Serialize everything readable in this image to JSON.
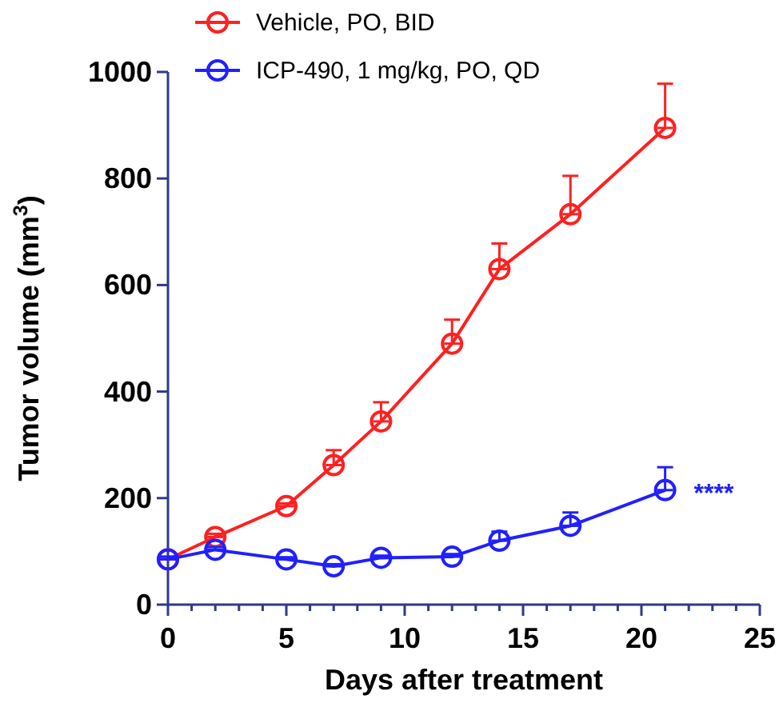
{
  "chart_data": {
    "type": "line",
    "xlabel": "Days after treatment",
    "ylabel": "Tumor volume (mm$^{3}$)",
    "xlim": [
      0,
      25
    ],
    "ylim": [
      0,
      1000
    ],
    "xticks": [
      0,
      {
        "value": 1,
        "label": null
      },
      {
        "value": 2,
        "label": null
      },
      {
        "value": 3,
        "label": null
      },
      {
        "value": 4,
        "label": null
      },
      5,
      {
        "value": 6,
        "label": null
      },
      {
        "value": 7,
        "label": null
      },
      {
        "value": 8,
        "label": null
      },
      {
        "value": 9,
        "label": null
      },
      10,
      {
        "value": 11,
        "label": null
      },
      {
        "value": 12,
        "label": null
      },
      {
        "value": 13,
        "label": null
      },
      {
        "value": 14,
        "label": null
      },
      15,
      {
        "value": 16,
        "label": null
      },
      {
        "value": 17,
        "label": null
      },
      {
        "value": 18,
        "label": null
      },
      {
        "value": 19,
        "label": null
      },
      20,
      {
        "value": 21,
        "label": null
      },
      {
        "value": 22,
        "label": null
      },
      {
        "value": 23,
        "label": null
      },
      {
        "value": 24,
        "label": null
      },
      25
    ],
    "yticks": [
      0,
      200,
      400,
      600,
      800,
      1000
    ],
    "x": [
      0,
      2,
      5,
      7,
      9,
      12,
      14,
      17,
      21
    ],
    "series": [
      {
        "name": "Vehicle, PO, BID",
        "color": "#ff2020",
        "values": [
          85,
          127,
          185,
          262,
          344,
          490,
          630,
          733,
          895
        ],
        "errors": [
          [
            85,
            90
          ],
          [
            127,
            133
          ],
          [
            185,
            190
          ],
          [
            262,
            290
          ],
          [
            344,
            380
          ],
          [
            490,
            535
          ],
          [
            630,
            678
          ],
          [
            733,
            805
          ],
          [
            895,
            978
          ]
        ]
      },
      {
        "name": "ICP-490, 1 mg/kg, PO, QD",
        "color": "#2020ff",
        "values": [
          85,
          103,
          85,
          72,
          88,
          90,
          120,
          148,
          215
        ],
        "errors": [
          [
            85,
            90
          ],
          [
            103,
            108
          ],
          [
            85,
            89
          ],
          [
            72,
            76
          ],
          [
            88,
            92
          ],
          [
            90,
            95
          ],
          [
            120,
            137
          ],
          [
            148,
            173
          ],
          [
            215,
            258
          ]
        ]
      }
    ],
    "annotations": [
      "****"
    ],
    "marker": "circle",
    "legend": "top",
    "grid": false
  }
}
